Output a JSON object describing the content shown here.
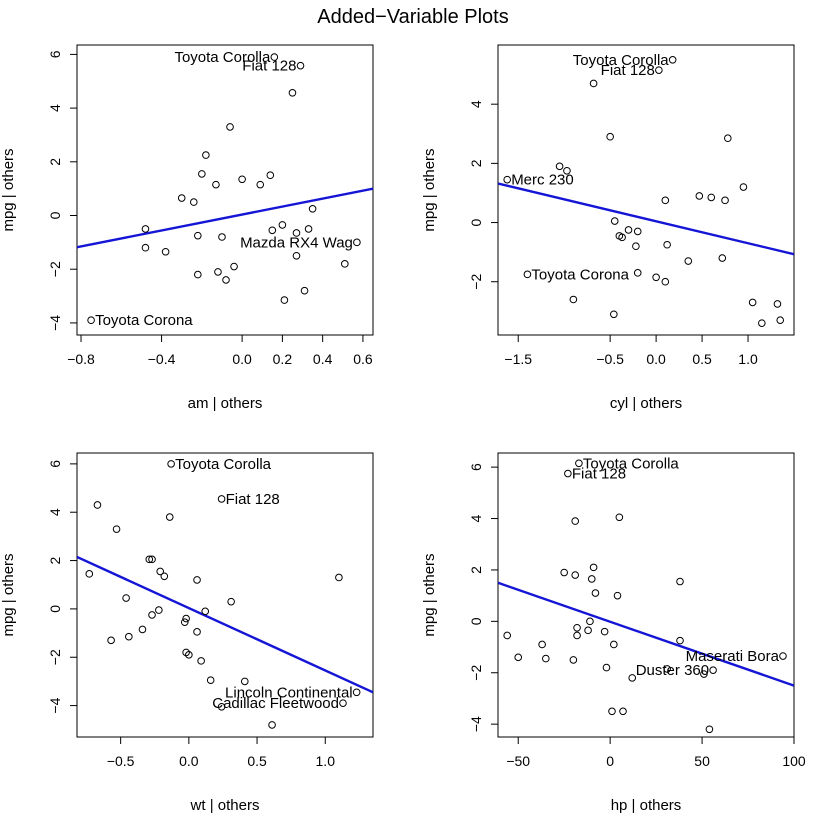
{
  "title": "Added−Variable Plots",
  "chart_data": [
    {
      "type": "scatter",
      "xlabel": "am | others",
      "ylabel": "mpg | others",
      "xlim": [
        -0.82,
        0.65
      ],
      "ylim": [
        -4.45,
        6.35
      ],
      "xticks": [
        -0.8,
        -0.4,
        0.0,
        0.2,
        0.4,
        0.6
      ],
      "xtick_labels": [
        "−0.8",
        "−0.4",
        "0.0",
        "0.2",
        "0.4",
        "0.6"
      ],
      "yticks": [
        -4,
        -2,
        0,
        2,
        4,
        6
      ],
      "ytick_labels": [
        "−4",
        "−2",
        "0",
        "2",
        "4",
        "6"
      ],
      "fit_line": {
        "x": [
          -0.82,
          0.65
        ],
        "y": [
          -1.18,
          1.0
        ]
      },
      "points": [
        [
          0.16,
          5.9
        ],
        [
          0.29,
          5.58
        ],
        [
          0.25,
          4.57
        ],
        [
          -0.06,
          3.3
        ],
        [
          -0.18,
          2.25
        ],
        [
          -0.2,
          1.55
        ],
        [
          -0.13,
          1.15
        ],
        [
          0.0,
          1.35
        ],
        [
          0.09,
          1.15
        ],
        [
          0.14,
          1.5
        ],
        [
          -0.3,
          0.65
        ],
        [
          -0.24,
          0.5
        ],
        [
          0.35,
          0.25
        ],
        [
          0.2,
          -0.35
        ],
        [
          0.15,
          -0.55
        ],
        [
          0.27,
          -0.65
        ],
        [
          0.33,
          -0.5
        ],
        [
          -0.48,
          -0.5
        ],
        [
          -0.22,
          -0.75
        ],
        [
          -0.1,
          -0.8
        ],
        [
          0.57,
          -1.0
        ],
        [
          -0.48,
          -1.2
        ],
        [
          -0.38,
          -1.35
        ],
        [
          0.27,
          -1.5
        ],
        [
          0.51,
          -1.8
        ],
        [
          -0.04,
          -1.9
        ],
        [
          -0.12,
          -2.1
        ],
        [
          -0.22,
          -2.2
        ],
        [
          -0.08,
          -2.4
        ],
        [
          0.31,
          -2.8
        ],
        [
          0.21,
          -3.15
        ],
        [
          -0.75,
          -3.9
        ]
      ],
      "labels": [
        {
          "x": 0.16,
          "y": 5.9,
          "text": "Toyota Corolla",
          "anchor": "end"
        },
        {
          "x": 0.29,
          "y": 5.58,
          "text": "Fiat 128",
          "anchor": "end"
        },
        {
          "x": 0.57,
          "y": -1.0,
          "text": "Mazda RX4 Wag",
          "anchor": "end"
        },
        {
          "x": -0.75,
          "y": -3.9,
          "text": "Toyota Corona",
          "anchor": "start"
        }
      ]
    },
    {
      "type": "scatter",
      "xlabel": "cyl | others",
      "ylabel": "mpg | others",
      "xlim": [
        -1.72,
        1.5
      ],
      "ylim": [
        -3.8,
        6.0
      ],
      "xticks": [
        -1.5,
        -0.5,
        0.0,
        0.5,
        1.0
      ],
      "xtick_labels": [
        "−1.5",
        "−0.5",
        "0.0",
        "0.5",
        "1.0"
      ],
      "yticks": [
        -2,
        0,
        2,
        4
      ],
      "ytick_labels": [
        "−2",
        "0",
        "2",
        "4"
      ],
      "fit_line": {
        "x": [
          -1.72,
          1.5
        ],
        "y": [
          1.32,
          -1.07
        ]
      },
      "points": [
        [
          0.18,
          5.5
        ],
        [
          0.03,
          5.15
        ],
        [
          -0.68,
          4.7
        ],
        [
          -0.5,
          2.9
        ],
        [
          0.78,
          2.85
        ],
        [
          -1.05,
          1.9
        ],
        [
          -0.97,
          1.75
        ],
        [
          -1.62,
          1.45
        ],
        [
          0.95,
          1.2
        ],
        [
          0.47,
          0.9
        ],
        [
          0.6,
          0.85
        ],
        [
          0.75,
          0.75
        ],
        [
          0.1,
          0.75
        ],
        [
          -0.45,
          0.05
        ],
        [
          -0.3,
          -0.25
        ],
        [
          -0.2,
          -0.3
        ],
        [
          -0.4,
          -0.45
        ],
        [
          -0.37,
          -0.5
        ],
        [
          -0.22,
          -0.8
        ],
        [
          0.12,
          -0.75
        ],
        [
          0.72,
          -1.2
        ],
        [
          0.35,
          -1.3
        ],
        [
          -1.4,
          -1.75
        ],
        [
          -0.2,
          -1.7
        ],
        [
          0.0,
          -1.85
        ],
        [
          0.1,
          -2.0
        ],
        [
          -0.9,
          -2.6
        ],
        [
          1.05,
          -2.7
        ],
        [
          1.32,
          -2.75
        ],
        [
          -0.46,
          -3.1
        ],
        [
          1.35,
          -3.3
        ],
        [
          1.15,
          -3.4
        ]
      ],
      "labels": [
        {
          "x": 0.18,
          "y": 5.5,
          "text": "Toyota Corolla",
          "anchor": "end"
        },
        {
          "x": 0.03,
          "y": 5.15,
          "text": "Fiat 128",
          "anchor": "end"
        },
        {
          "x": -1.62,
          "y": 1.45,
          "text": "Merc 230",
          "anchor": "start"
        },
        {
          "x": -1.4,
          "y": -1.75,
          "text": "Toyota Corona",
          "anchor": "start"
        }
      ]
    },
    {
      "type": "scatter",
      "xlabel": "wt | others",
      "ylabel": "mpg | others",
      "xlim": [
        -0.82,
        1.35
      ],
      "ylim": [
        -5.3,
        6.45
      ],
      "xticks": [
        -0.5,
        0.0,
        0.5,
        1.0
      ],
      "xtick_labels": [
        "−0.5",
        "0.0",
        "0.5",
        "1.0"
      ],
      "yticks": [
        -4,
        -2,
        0,
        2,
        4,
        6
      ],
      "ytick_labels": [
        "−4",
        "−2",
        "0",
        "2",
        "4",
        "6"
      ],
      "fit_line": {
        "x": [
          -0.82,
          1.35
        ],
        "y": [
          2.15,
          -3.45
        ]
      },
      "points": [
        [
          -0.13,
          6.0
        ],
        [
          0.24,
          4.55
        ],
        [
          -0.67,
          4.3
        ],
        [
          -0.53,
          3.3
        ],
        [
          -0.14,
          3.8
        ],
        [
          -0.29,
          2.05
        ],
        [
          -0.27,
          2.05
        ],
        [
          -0.21,
          1.55
        ],
        [
          -0.18,
          1.35
        ],
        [
          -0.73,
          1.45
        ],
        [
          0.06,
          1.2
        ],
        [
          1.1,
          1.3
        ],
        [
          0.31,
          0.3
        ],
        [
          -0.46,
          0.45
        ],
        [
          -0.22,
          -0.05
        ],
        [
          -0.27,
          -0.25
        ],
        [
          0.12,
          -0.1
        ],
        [
          -0.02,
          -0.4
        ],
        [
          -0.03,
          -0.55
        ],
        [
          0.06,
          -0.95
        ],
        [
          -0.34,
          -0.85
        ],
        [
          -0.44,
          -1.15
        ],
        [
          -0.57,
          -1.3
        ],
        [
          -0.02,
          -1.8
        ],
        [
          0.0,
          -1.9
        ],
        [
          0.09,
          -2.15
        ],
        [
          0.16,
          -2.95
        ],
        [
          0.41,
          -3.0
        ],
        [
          1.23,
          -3.45
        ],
        [
          1.13,
          -3.9
        ],
        [
          0.24,
          -4.05
        ],
        [
          0.61,
          -4.8
        ]
      ],
      "labels": [
        {
          "x": -0.13,
          "y": 6.0,
          "text": "Toyota Corolla",
          "anchor": "start"
        },
        {
          "x": 0.24,
          "y": 4.55,
          "text": "Fiat 128",
          "anchor": "start"
        },
        {
          "x": 1.23,
          "y": -3.45,
          "text": "Lincoln Continental",
          "anchor": "end"
        },
        {
          "x": 1.13,
          "y": -3.9,
          "text": "Cadillac Fleetwood",
          "anchor": "end"
        }
      ]
    },
    {
      "type": "scatter",
      "xlabel": "hp | others",
      "ylabel": "mpg | others",
      "xlim": [
        -61,
        100
      ],
      "ylim": [
        -4.5,
        6.55
      ],
      "xticks": [
        -50,
        0,
        50,
        100
      ],
      "xtick_labels": [
        "−50",
        "0",
        "50",
        "100"
      ],
      "yticks": [
        -4,
        -2,
        0,
        2,
        4,
        6
      ],
      "ytick_labels": [
        "−4",
        "−2",
        "0",
        "2",
        "4",
        "6"
      ],
      "fit_line": {
        "x": [
          -61,
          100
        ],
        "y": [
          1.5,
          -2.5
        ]
      },
      "points": [
        [
          -17,
          6.15
        ],
        [
          -23,
          5.75
        ],
        [
          5,
          4.05
        ],
        [
          -19,
          3.9
        ],
        [
          -9,
          2.1
        ],
        [
          -25,
          1.9
        ],
        [
          -19,
          1.8
        ],
        [
          -10,
          1.65
        ],
        [
          38,
          1.55
        ],
        [
          -8,
          1.1
        ],
        [
          4,
          1.0
        ],
        [
          -11,
          0.0
        ],
        [
          -18,
          -0.25
        ],
        [
          -12,
          -0.35
        ],
        [
          -18,
          -0.55
        ],
        [
          -56,
          -0.55
        ],
        [
          -3,
          -0.4
        ],
        [
          2,
          -0.9
        ],
        [
          -37,
          -0.9
        ],
        [
          38,
          -0.75
        ],
        [
          94,
          -1.35
        ],
        [
          -50,
          -1.4
        ],
        [
          -35,
          -1.45
        ],
        [
          -20,
          -1.5
        ],
        [
          -2,
          -1.8
        ],
        [
          31,
          -1.85
        ],
        [
          56,
          -1.9
        ],
        [
          51,
          -2.05
        ],
        [
          12,
          -2.2
        ],
        [
          1,
          -3.5
        ],
        [
          7,
          -3.5
        ],
        [
          54,
          -4.2
        ]
      ],
      "labels": [
        {
          "x": -17,
          "y": 6.15,
          "text": "Toyota Corolla",
          "anchor": "start"
        },
        {
          "x": -23,
          "y": 5.75,
          "text": "Fiat 128",
          "anchor": "start"
        },
        {
          "x": 94,
          "y": -1.35,
          "text": "Maserati Bora",
          "anchor": "end"
        },
        {
          "x": 56,
          "y": -1.9,
          "text": "Duster 360",
          "anchor": "end"
        }
      ]
    }
  ]
}
